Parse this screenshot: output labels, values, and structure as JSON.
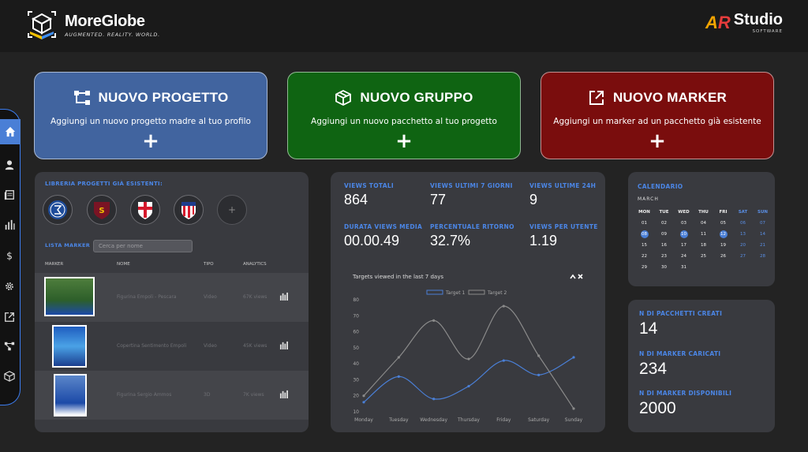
{
  "brand": {
    "name": "MoreGlobe",
    "tagline": "AUGMENTED. REALITY. WORLD."
  },
  "partner": {
    "badge_a": "A",
    "badge_r": "R",
    "name": "Studio",
    "sub": "SOFTWARE"
  },
  "sidebar": {
    "items": [
      "home",
      "user",
      "library",
      "analytics",
      "pricing",
      "settings",
      "external-link",
      "project-tree",
      "package"
    ]
  },
  "actions": [
    {
      "title": "NUOVO PROGETTO",
      "desc": "Aggiungi un nuovo progetto madre al tuo profilo",
      "plus": "+",
      "color": "#41649f"
    },
    {
      "title": "NUOVO GRUPPO",
      "desc": "Aggiungi un nuovo pacchetto al tuo progetto",
      "plus": "+",
      "color": "#0f6412"
    },
    {
      "title": "NUOVO MARKER",
      "desc": "Aggiungi un marker ad un pacchetto già esistente",
      "plus": "+",
      "color": "#7a0d0d"
    }
  ],
  "library": {
    "title": "LIBRERIA PROGETTI GIÀ ESISTENTI:",
    "add": "+",
    "teams": [
      "empoli",
      "salernitana",
      "padova",
      "atletico"
    ]
  },
  "markers": {
    "label": "LISTA MARKER",
    "search_placeholder": "Cerca per nome",
    "headers": {
      "marker": "MARKER",
      "nome": "NOME",
      "tipo": "TIPO",
      "analytics": "ANALYTICS"
    },
    "rows": [
      {
        "nome": "Figurina Empoli - Pescara",
        "tipo": "Video",
        "views": "67K views"
      },
      {
        "nome": "Copertina Sentimento Empoli",
        "tipo": "Video",
        "views": "45K views"
      },
      {
        "nome": "Figurina Sergio Ammos",
        "tipo": "3D",
        "views": "7K views"
      }
    ]
  },
  "stats": [
    {
      "label": "VIEWS TOTALI",
      "value": "864"
    },
    {
      "label": "VIEWS ULTIMI 7 GIORNI",
      "value": "77"
    },
    {
      "label": "VIEWS ULTIME 24H",
      "value": "9"
    },
    {
      "label": "DURATA VIEWS MEDIA",
      "value": "00.00.49"
    },
    {
      "label": "PERCENTUALE RITORNO",
      "value": "32.7%"
    },
    {
      "label": "VIEWS PER UTENTE",
      "value": "1.19"
    }
  ],
  "chart_data": {
    "type": "line",
    "title": "Targets viewed in the last 7 days",
    "categories": [
      "Monday",
      "Tuesday",
      "Wednesday",
      "Thursday",
      "Friday",
      "Saturday",
      "Sunday"
    ],
    "series": [
      {
        "name": "Target 1",
        "color": "#4a7fd6",
        "values": [
          16,
          32,
          18,
          26,
          42,
          33,
          44
        ]
      },
      {
        "name": "Target 2",
        "color": "#8a8a8a",
        "values": [
          20,
          44,
          67,
          43,
          76,
          45,
          12
        ]
      }
    ],
    "yticks": [
      10,
      20,
      30,
      40,
      50,
      60,
      70,
      80
    ],
    "ylim": [
      10,
      80
    ],
    "legend": "top",
    "grid": false
  },
  "calendar": {
    "title": "CALENDARIO",
    "month": "MARCH",
    "days": [
      "MON",
      "TUE",
      "WED",
      "THU",
      "FRI",
      "SAT",
      "SUN"
    ],
    "weeks": [
      [
        "01",
        "02",
        "03",
        "04",
        "05",
        "06",
        "07"
      ],
      [
        "08",
        "09",
        "10",
        "11",
        "12",
        "13",
        "14"
      ],
      [
        "15",
        "16",
        "17",
        "18",
        "19",
        "20",
        "21"
      ],
      [
        "22",
        "23",
        "24",
        "25",
        "26",
        "27",
        "28"
      ],
      [
        "29",
        "30",
        "31",
        "",
        "",
        "",
        ""
      ]
    ],
    "selected": [
      "08",
      "10",
      "12"
    ]
  },
  "counts": [
    {
      "label": "N DI PACCHETTI CREATI",
      "value": "14"
    },
    {
      "label": "N DI MARKER CARICATI",
      "value": "234"
    },
    {
      "label": "N DI MARKER DISPONIBILI",
      "value": "2000"
    }
  ]
}
